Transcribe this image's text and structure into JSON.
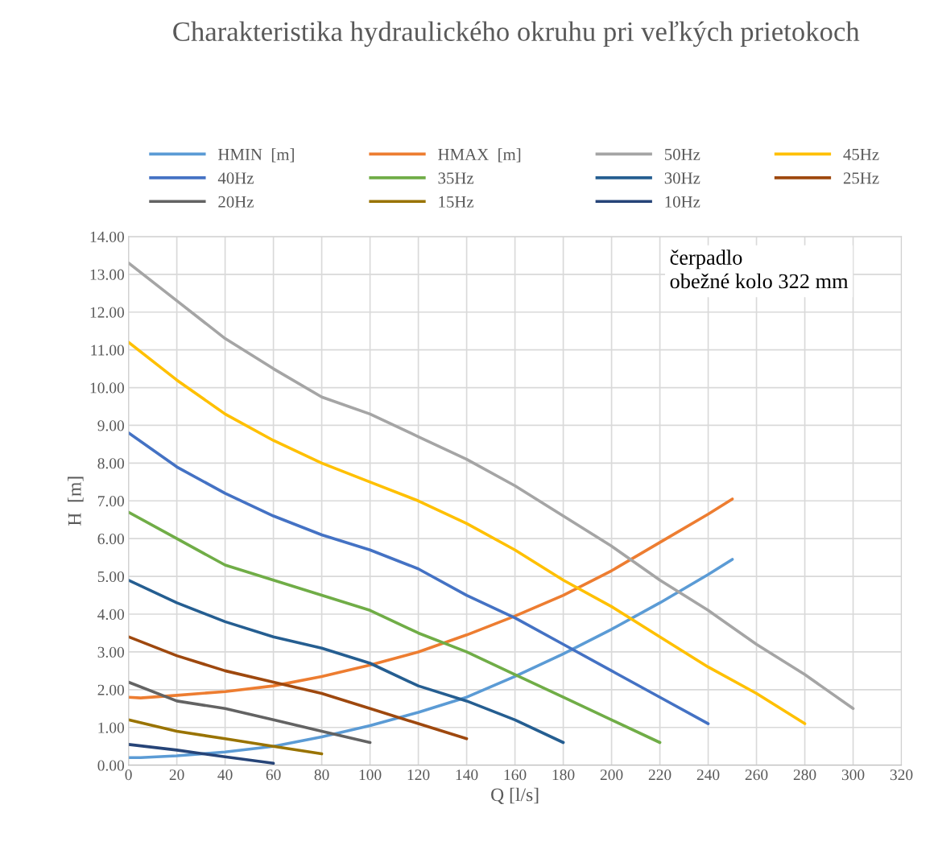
{
  "chart_data": {
    "type": "line",
    "title": "Charakteristika hydraulického okruhu pri veľkých prietokoch",
    "xlabel": "Q [l/s]",
    "ylabel": "H  [m]",
    "xlim": [
      0,
      320
    ],
    "xticks": [
      0,
      20,
      40,
      60,
      80,
      100,
      120,
      140,
      160,
      180,
      200,
      220,
      240,
      260,
      280,
      300,
      320
    ],
    "ylim": [
      0,
      14
    ],
    "yticks": [
      {
        "value": 0,
        "label": "0.00"
      },
      {
        "value": 1,
        "label": "1.00"
      },
      {
        "value": 2,
        "label": "2.00"
      },
      {
        "value": 3,
        "label": "3.00"
      },
      {
        "value": 4,
        "label": "4.00"
      },
      {
        "value": 5,
        "label": "5.00"
      },
      {
        "value": 6,
        "label": "6.00"
      },
      {
        "value": 7,
        "label": "7.00"
      },
      {
        "value": 8,
        "label": "8.00"
      },
      {
        "value": 9,
        "label": "9.00"
      },
      {
        "value": 10,
        "label": "10.00"
      },
      {
        "value": 11,
        "label": "11.00"
      },
      {
        "value": 12,
        "label": "12.00"
      },
      {
        "value": 13,
        "label": "13.00"
      },
      {
        "value": 14,
        "label": "14.00"
      }
    ],
    "grid": true,
    "legend": "top",
    "marker": "none",
    "line_style": "solid",
    "annotations": [
      "čerpadlo",
      "obežné kolo 322 mm"
    ],
    "series": [
      {
        "name": "HMIN  [m]",
        "color": "#5b9bd5",
        "x": [
          0,
          5,
          20,
          40,
          60,
          80,
          100,
          120,
          140,
          160,
          180,
          200,
          220,
          240,
          250
        ],
        "values": [
          0.2,
          0.2,
          0.25,
          0.35,
          0.5,
          0.75,
          1.05,
          1.4,
          1.8,
          2.35,
          2.95,
          3.6,
          4.3,
          5.05,
          5.45
        ]
      },
      {
        "name": "HMAX  [m]",
        "color": "#ed7d31",
        "x": [
          0,
          5,
          20,
          40,
          60,
          80,
          100,
          120,
          140,
          160,
          180,
          200,
          220,
          240,
          250
        ],
        "values": [
          1.8,
          1.78,
          1.85,
          1.95,
          2.1,
          2.35,
          2.65,
          3.0,
          3.45,
          3.95,
          4.5,
          5.15,
          5.9,
          6.65,
          7.05
        ]
      },
      {
        "name": "50Hz",
        "color": "#a5a5a5",
        "x": [
          0,
          20,
          40,
          60,
          80,
          100,
          120,
          140,
          160,
          180,
          200,
          220,
          240,
          260,
          280,
          300
        ],
        "values": [
          13.3,
          12.3,
          11.3,
          10.5,
          9.75,
          9.3,
          8.7,
          8.1,
          7.4,
          6.6,
          5.8,
          4.9,
          4.1,
          3.2,
          2.4,
          1.5
        ]
      },
      {
        "name": "45Hz",
        "color": "#ffc000",
        "x": [
          0,
          20,
          40,
          60,
          80,
          100,
          120,
          140,
          160,
          180,
          200,
          220,
          240,
          260,
          280
        ],
        "values": [
          11.2,
          10.2,
          9.3,
          8.6,
          8.0,
          7.5,
          7.0,
          6.4,
          5.7,
          4.9,
          4.2,
          3.4,
          2.6,
          1.9,
          1.1
        ]
      },
      {
        "name": "40Hz",
        "color": "#4472c4",
        "x": [
          0,
          20,
          40,
          60,
          80,
          100,
          120,
          140,
          160,
          180,
          200,
          220,
          240
        ],
        "values": [
          8.8,
          7.9,
          7.2,
          6.6,
          6.1,
          5.7,
          5.2,
          4.5,
          3.9,
          3.2,
          2.5,
          1.8,
          1.1
        ]
      },
      {
        "name": "35Hz",
        "color": "#70ad47",
        "x": [
          0,
          20,
          40,
          60,
          80,
          100,
          120,
          140,
          160,
          180,
          200,
          220
        ],
        "values": [
          6.7,
          6.0,
          5.3,
          4.9,
          4.5,
          4.1,
          3.5,
          3.0,
          2.4,
          1.8,
          1.2,
          0.6
        ]
      },
      {
        "name": "30Hz",
        "color": "#255e91",
        "x": [
          0,
          20,
          40,
          60,
          80,
          100,
          120,
          140,
          160,
          180
        ],
        "values": [
          4.9,
          4.3,
          3.8,
          3.4,
          3.1,
          2.7,
          2.1,
          1.7,
          1.2,
          0.6
        ]
      },
      {
        "name": "25Hz",
        "color": "#9e480e",
        "x": [
          0,
          20,
          40,
          60,
          80,
          100,
          120,
          140
        ],
        "values": [
          3.4,
          2.9,
          2.5,
          2.2,
          1.9,
          1.5,
          1.1,
          0.7
        ]
      },
      {
        "name": "20Hz",
        "color": "#636363",
        "x": [
          0,
          20,
          40,
          60,
          80,
          100
        ],
        "values": [
          2.2,
          1.7,
          1.5,
          1.2,
          0.9,
          0.6
        ]
      },
      {
        "name": "15Hz",
        "color": "#997300",
        "x": [
          0,
          20,
          40,
          60,
          80
        ],
        "values": [
          1.2,
          0.9,
          0.7,
          0.5,
          0.3
        ]
      },
      {
        "name": "10Hz",
        "color": "#264478",
        "x": [
          0,
          20,
          40,
          60
        ],
        "values": [
          0.55,
          0.4,
          0.22,
          0.05
        ]
      }
    ]
  }
}
